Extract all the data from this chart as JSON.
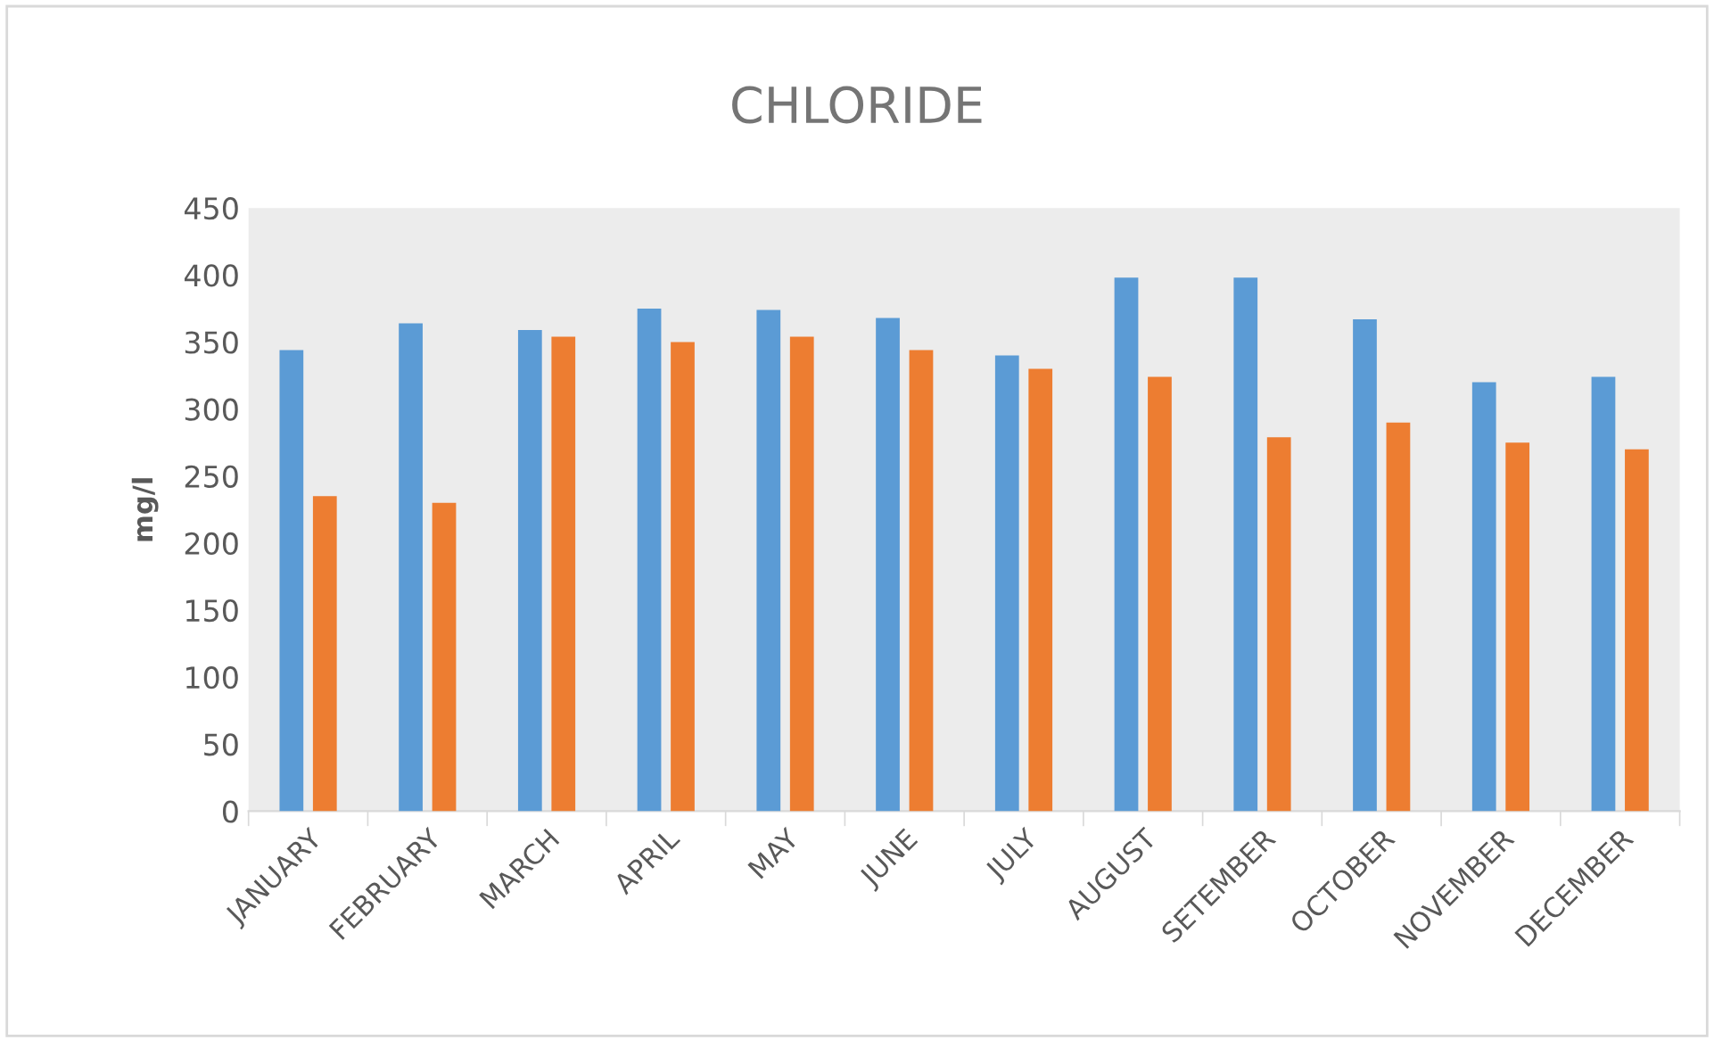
{
  "chart_data": {
    "type": "bar",
    "title": "CHLORIDE",
    "ylabel": "mg/l",
    "categories": [
      "JANUARY",
      "FEBRUARY",
      "MARCH",
      "APRIL",
      "MAY",
      "JUNE",
      "JULY",
      "AUGUST",
      "SETEMBER",
      "OCTOBER",
      "NOVEMBER",
      "DECEMBER"
    ],
    "series": [
      {
        "color": "#5b9bd5",
        "values": [
          344,
          364,
          359,
          375,
          374,
          368,
          340,
          398,
          398,
          367,
          320,
          324
        ]
      },
      {
        "color": "#ed7d31",
        "values": [
          235,
          230,
          354,
          350,
          354,
          344,
          330,
          324,
          279,
          290,
          275,
          270
        ]
      }
    ],
    "ylim": [
      0,
      450
    ],
    "yticks": [
      0,
      50,
      100,
      150,
      200,
      250,
      300,
      350,
      400,
      450
    ],
    "grid": false
  }
}
